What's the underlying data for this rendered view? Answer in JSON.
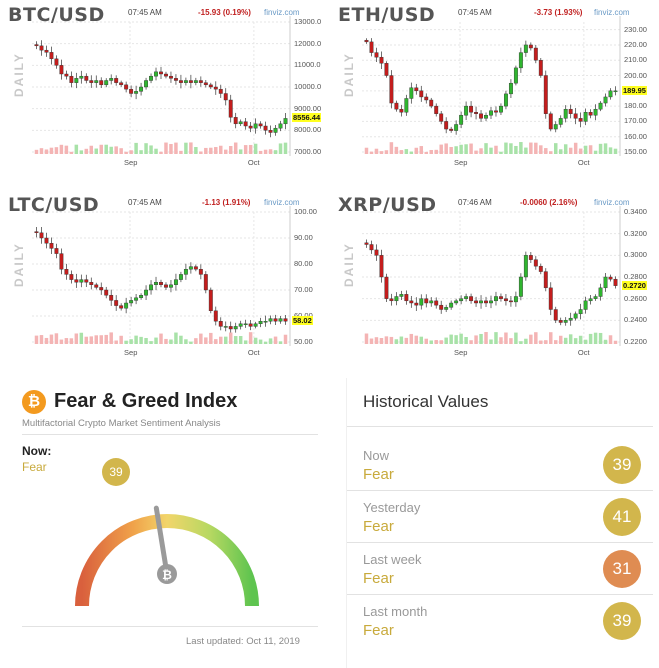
{
  "charts": [
    {
      "id": "btc",
      "title": "BTC/USD",
      "time": "07:45 AM",
      "change": "-15.93 (0.19%)",
      "brand": "finviz.com",
      "daily": "DAILY",
      "last_price_label": "8556.44",
      "y_ticks": [
        "13000.0",
        "12000.0",
        "11000.0",
        "10000.0",
        "9000.00",
        "8000.00",
        "7000.00"
      ],
      "y_range": [
        7000,
        13000
      ],
      "x_ticks": [
        "Sep",
        "Oct"
      ],
      "chart_data": {
        "type": "candlestick",
        "closes": [
          11900,
          11700,
          11600,
          11300,
          11000,
          10600,
          10500,
          10200,
          10400,
          10500,
          10300,
          10200,
          10300,
          10100,
          10300,
          10400,
          10200,
          10100,
          9900,
          9700,
          9800,
          10000,
          10300,
          10500,
          10700,
          10600,
          10500,
          10400,
          10300,
          10200,
          10300,
          10200,
          10300,
          10200,
          10100,
          10000,
          9900,
          9700,
          9400,
          8600,
          8300,
          8400,
          8200,
          8100,
          8300,
          8200,
          8000,
          7900,
          8100,
          8300,
          8550
        ],
        "last": 8556.44
      }
    },
    {
      "id": "eth",
      "title": "ETH/USD",
      "time": "07:45 AM",
      "change": "-3.73 (1.93%)",
      "brand": "finviz.com",
      "daily": "DAILY",
      "last_price_label": "189.95",
      "y_ticks": [
        "230.00",
        "220.00",
        "210.00",
        "200.00",
        "190.00",
        "180.00",
        "170.00",
        "160.00",
        "150.00"
      ],
      "y_range": [
        150,
        235
      ],
      "x_ticks": [
        "Sep",
        "Oct"
      ],
      "chart_data": {
        "type": "candlestick",
        "closes": [
          222,
          215,
          212,
          208,
          200,
          182,
          178,
          176,
          185,
          192,
          190,
          186,
          184,
          180,
          175,
          170,
          165,
          164,
          168,
          174,
          180,
          176,
          175,
          172,
          174,
          177,
          176,
          180,
          188,
          195,
          205,
          215,
          220,
          218,
          210,
          200,
          175,
          165,
          168,
          172,
          178,
          175,
          172,
          170,
          176,
          174,
          178,
          182,
          186,
          190,
          190
        ],
        "last": 189.95
      }
    },
    {
      "id": "ltc",
      "title": "LTC/USD",
      "time": "07:45 AM",
      "change": "-1.13 (1.91%)",
      "brand": "finviz.com",
      "daily": "DAILY",
      "last_price_label": "58.02",
      "y_ticks": [
        "100.00",
        "90.00",
        "80.00",
        "70.00",
        "60.00",
        "50.00"
      ],
      "y_range": [
        50,
        100
      ],
      "x_ticks": [
        "Sep",
        "Oct"
      ],
      "chart_data": {
        "type": "candlestick",
        "closes": [
          92,
          90,
          88,
          86,
          84,
          78,
          76,
          74,
          73,
          74,
          73,
          72,
          71,
          70,
          68,
          66,
          64,
          63,
          65,
          66,
          67,
          68,
          70,
          72,
          73,
          72,
          71,
          72,
          74,
          76,
          78,
          79,
          78,
          76,
          70,
          62,
          58,
          56,
          56,
          55,
          56,
          57,
          57,
          56,
          57,
          58,
          58,
          59,
          58,
          59,
          58
        ],
        "last": 58.02
      }
    },
    {
      "id": "xrp",
      "title": "XRP/USD",
      "time": "07:46 AM",
      "change": "-0.0060 (2.16%)",
      "brand": "finviz.com",
      "daily": "DAILY",
      "last_price_label": "0.2720",
      "y_ticks": [
        "0.3400",
        "0.3200",
        "0.3000",
        "0.2800",
        "0.2600",
        "0.2400",
        "0.2200"
      ],
      "y_range": [
        0.22,
        0.34
      ],
      "x_ticks": [
        "Sep",
        "Oct"
      ],
      "chart_data": {
        "type": "candlestick",
        "closes": [
          0.31,
          0.305,
          0.3,
          0.28,
          0.26,
          0.258,
          0.262,
          0.264,
          0.258,
          0.256,
          0.254,
          0.26,
          0.256,
          0.258,
          0.254,
          0.25,
          0.252,
          0.256,
          0.258,
          0.26,
          0.262,
          0.258,
          0.256,
          0.258,
          0.256,
          0.258,
          0.262,
          0.26,
          0.258,
          0.257,
          0.262,
          0.28,
          0.3,
          0.296,
          0.29,
          0.285,
          0.27,
          0.25,
          0.24,
          0.238,
          0.24,
          0.242,
          0.246,
          0.25,
          0.258,
          0.26,
          0.262,
          0.27,
          0.28,
          0.278,
          0.272
        ],
        "last": 0.272
      }
    }
  ],
  "fear_greed": {
    "icon": "bitcoin-icon",
    "icon_glyph": "₿",
    "title": "Fear & Greed Index",
    "subtitle": "Multifactorial Crypto Market Sentiment Analysis",
    "now_label": "Now:",
    "now_value": "Fear",
    "index": 39,
    "index_label": "39",
    "updated": "Last updated: Oct 11, 2019"
  },
  "historical": {
    "title": "Historical Values",
    "rows": [
      {
        "label": "Now",
        "value": "Fear",
        "number": "39",
        "color": "#d2b64c"
      },
      {
        "label": "Yesterday",
        "value": "Fear",
        "number": "41",
        "color": "#d2b64c"
      },
      {
        "label": "Last week",
        "value": "Fear",
        "number": "31",
        "color": "#df8c52"
      },
      {
        "label": "Last month",
        "value": "Fear",
        "number": "39",
        "color": "#d2b64c"
      }
    ]
  }
}
